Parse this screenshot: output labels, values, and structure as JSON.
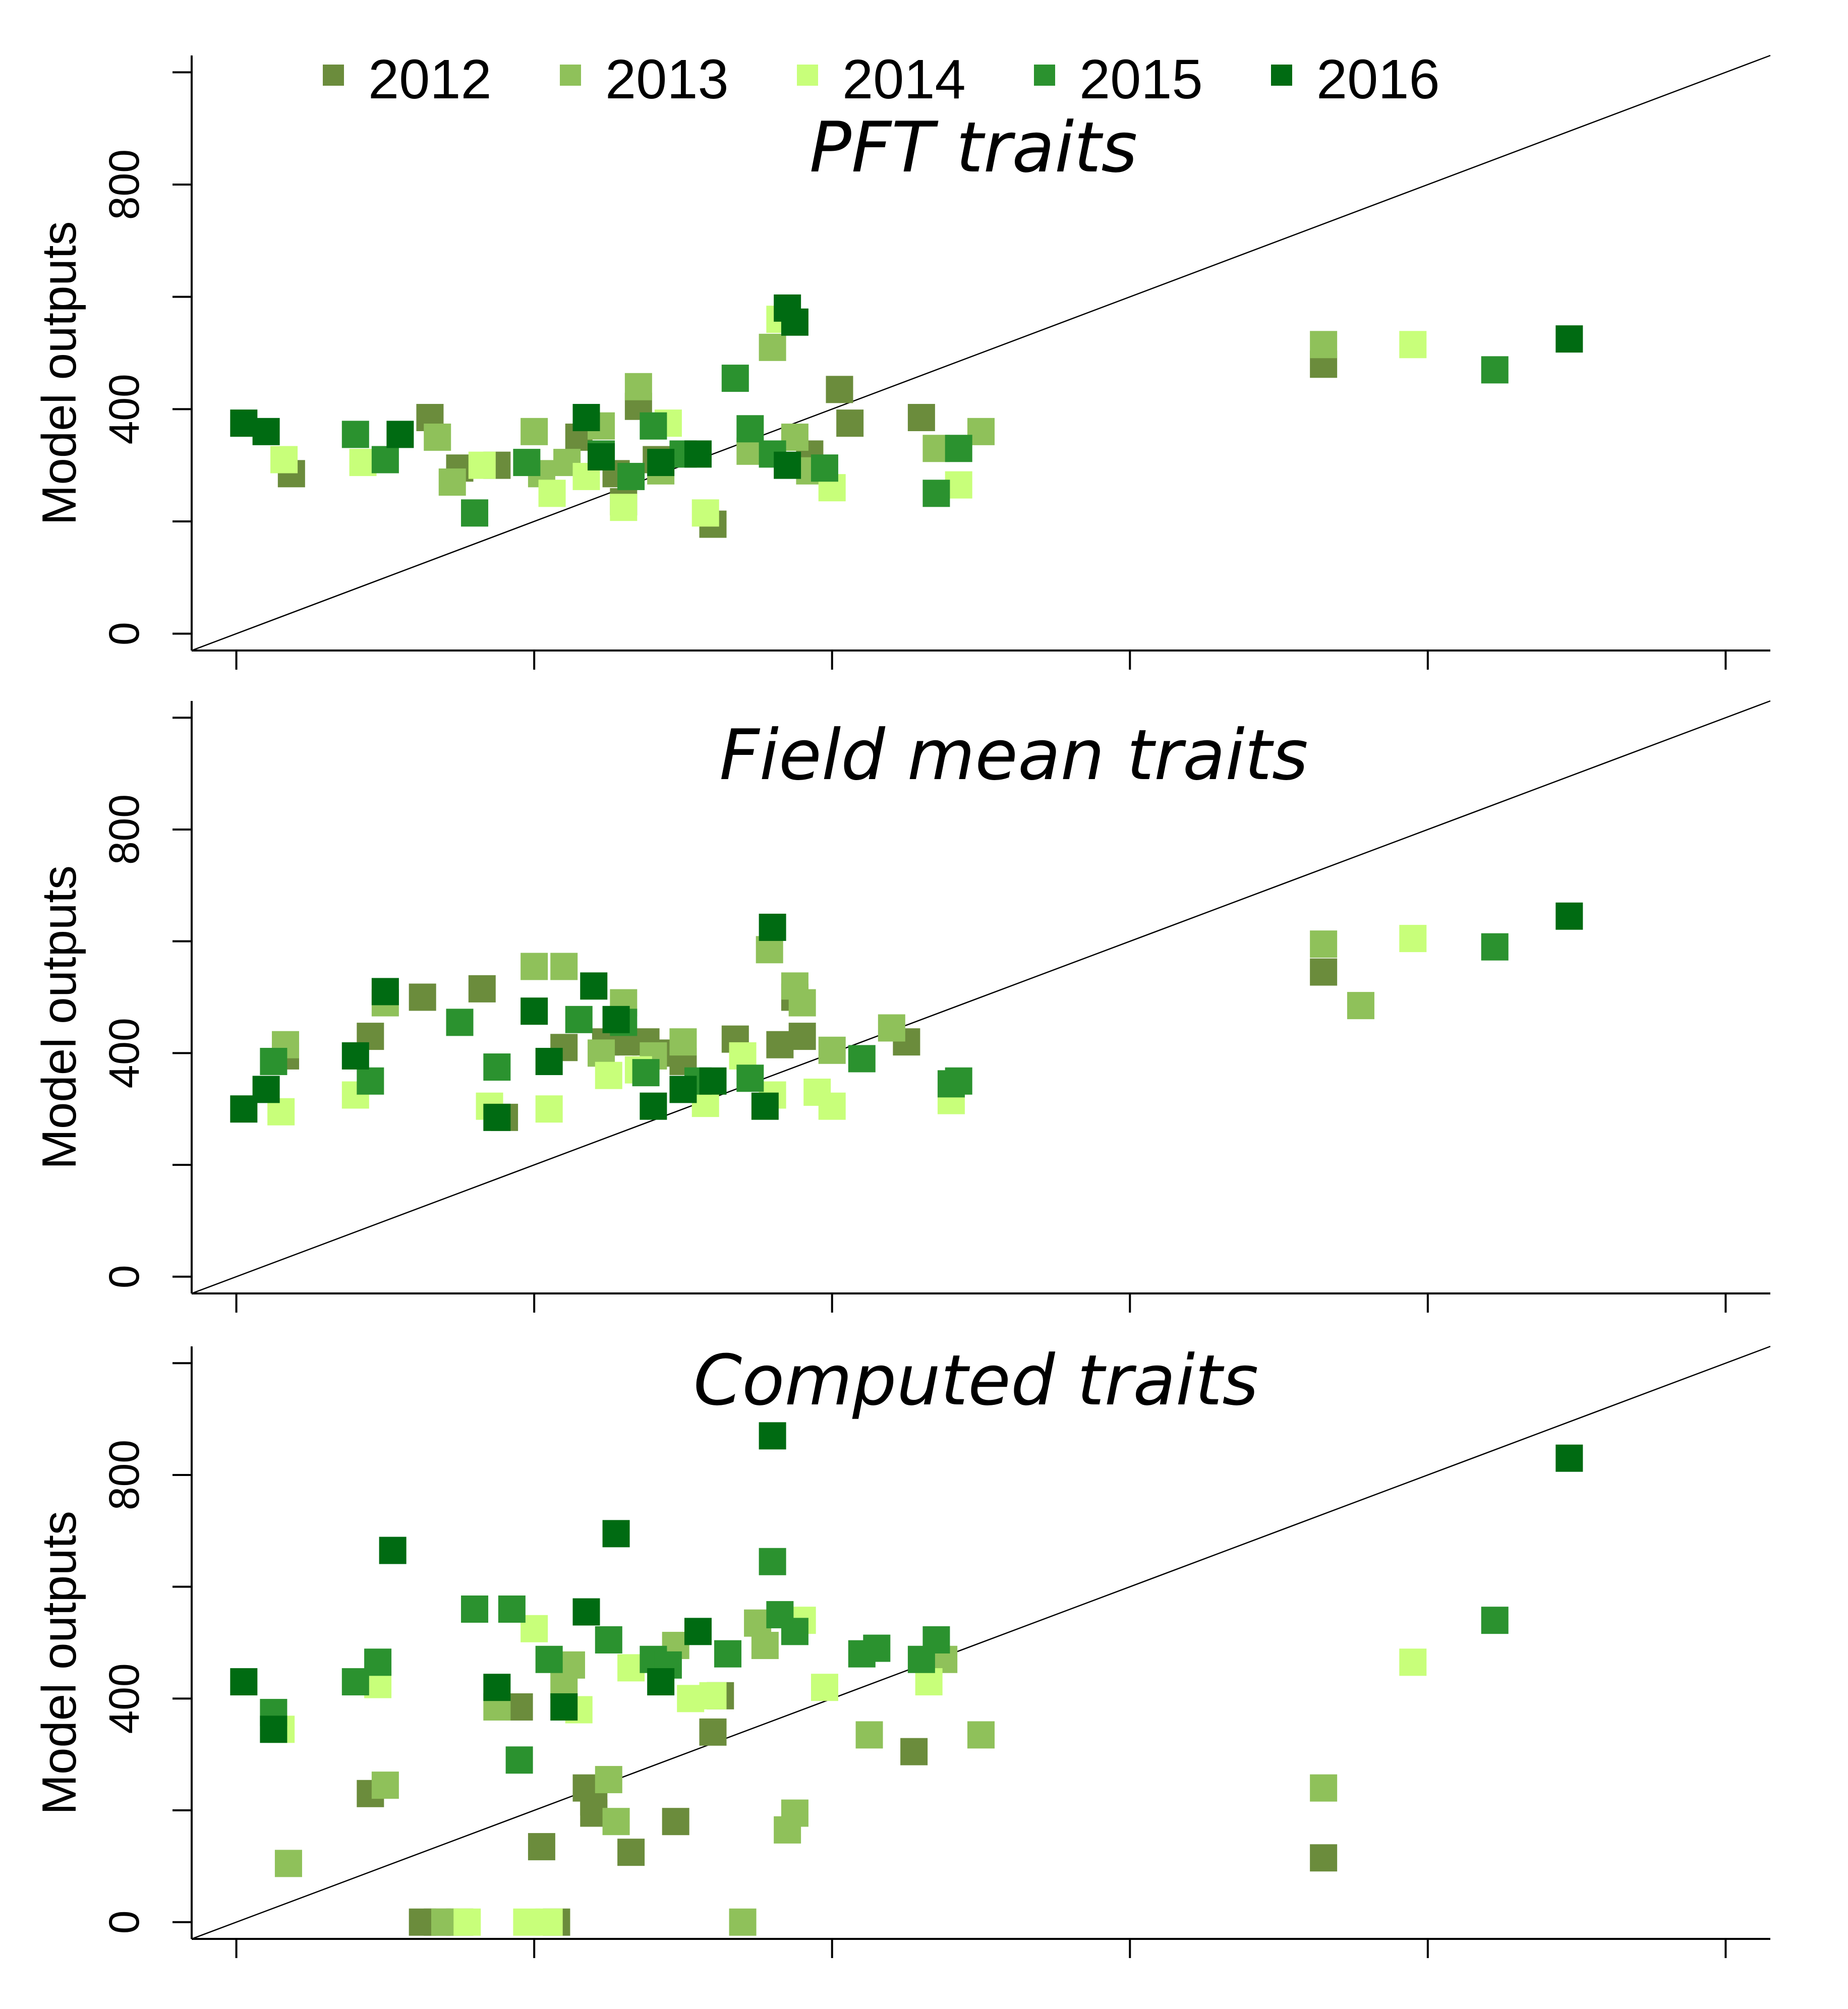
{
  "colors": {
    "2012": "#6b8c3c",
    "2013": "#8fc15a",
    "2014": "#c8ff7a",
    "2015": "#2b922f",
    "2016": "#006b12"
  },
  "chart_data": [
    {
      "type": "scatter",
      "title": "PFT traits",
      "ylabel": "Model outputs",
      "ylim": [
        -30,
        1030
      ],
      "yticks": [
        0,
        400,
        800
      ],
      "xlim": [
        -30,
        1030
      ],
      "reference_line": "1:1",
      "legend": {
        "placement": "top",
        "entries": [
          "2012",
          "2013",
          "2014",
          "2015",
          "2016"
        ]
      },
      "series": [
        {
          "name": "2012",
          "points": [
            [
              37,
              285
            ],
            [
              130,
              385
            ],
            [
              150,
              295
            ],
            [
              175,
              300
            ],
            [
              230,
              350
            ],
            [
              255,
              285
            ],
            [
              260,
              235
            ],
            [
              270,
              405
            ],
            [
              282,
              310
            ],
            [
              320,
              195
            ],
            [
              385,
              320
            ],
            [
              405,
              435
            ],
            [
              412,
              375
            ],
            [
              460,
              385
            ],
            [
              730,
              480
            ]
          ]
        },
        {
          "name": "2013",
          "points": [
            [
              135,
              350
            ],
            [
              145,
              270
            ],
            [
              200,
              360
            ],
            [
              205,
              285
            ],
            [
              222,
              305
            ],
            [
              245,
              370
            ],
            [
              270,
              440
            ],
            [
              285,
              290
            ],
            [
              345,
              325
            ],
            [
              360,
              510
            ],
            [
              375,
              350
            ],
            [
              385,
              290
            ],
            [
              470,
              330
            ],
            [
              500,
              360
            ],
            [
              730,
              515
            ]
          ]
        },
        {
          "name": "2014",
          "points": [
            [
              32,
              310
            ],
            [
              85,
              305
            ],
            [
              165,
              300
            ],
            [
              212,
              250
            ],
            [
              235,
              280
            ],
            [
              260,
              225
            ],
            [
              290,
              375
            ],
            [
              315,
              215
            ],
            [
              365,
              560
            ],
            [
              400,
              260
            ],
            [
              485,
              265
            ],
            [
              790,
              515
            ]
          ]
        },
        {
          "name": "2015",
          "points": [
            [
              80,
              355
            ],
            [
              100,
              310
            ],
            [
              160,
              215
            ],
            [
              195,
              305
            ],
            [
              245,
              320
            ],
            [
              265,
              280
            ],
            [
              280,
              370
            ],
            [
              300,
              320
            ],
            [
              335,
              455
            ],
            [
              345,
              365
            ],
            [
              360,
              320
            ],
            [
              395,
              295
            ],
            [
              470,
              250
            ],
            [
              485,
              330
            ],
            [
              845,
              470
            ]
          ]
        },
        {
          "name": "2016",
          "points": [
            [
              5,
              375
            ],
            [
              20,
              360
            ],
            [
              110,
              355
            ],
            [
              235,
              385
            ],
            [
              245,
              315
            ],
            [
              285,
              305
            ],
            [
              310,
              320
            ],
            [
              370,
              580
            ],
            [
              375,
              555
            ],
            [
              370,
              300
            ],
            [
              895,
              525
            ]
          ]
        }
      ]
    },
    {
      "type": "scatter",
      "title": "Field mean traits",
      "ylabel": "Model outputs",
      "ylim": [
        -30,
        1030
      ],
      "yticks": [
        0,
        400,
        800
      ],
      "xlim": [
        -30,
        1030
      ],
      "reference_line": "1:1",
      "series": [
        {
          "name": "2012",
          "points": [
            [
              33,
              395
            ],
            [
              90,
              430
            ],
            [
              125,
              500
            ],
            [
              165,
              515
            ],
            [
              180,
              285
            ],
            [
              220,
              410
            ],
            [
              248,
              420
            ],
            [
              260,
              420
            ],
            [
              275,
              420
            ],
            [
              290,
              400
            ],
            [
              300,
              385
            ],
            [
              335,
              425
            ],
            [
              365,
              415
            ],
            [
              375,
              500
            ],
            [
              380,
              430
            ],
            [
              450,
              420
            ],
            [
              730,
              545
            ]
          ]
        },
        {
          "name": "2013",
          "points": [
            [
              33,
              415
            ],
            [
              100,
              490
            ],
            [
              200,
              555
            ],
            [
              220,
              555
            ],
            [
              245,
              400
            ],
            [
              260,
              490
            ],
            [
              280,
              395
            ],
            [
              300,
              420
            ],
            [
              358,
              585
            ],
            [
              375,
              520
            ],
            [
              380,
              490
            ],
            [
              400,
              405
            ],
            [
              440,
              445
            ],
            [
              755,
              485
            ],
            [
              730,
              595
            ]
          ]
        },
        {
          "name": "2014",
          "points": [
            [
              30,
              295
            ],
            [
              80,
              325
            ],
            [
              170,
              305
            ],
            [
              210,
              300
            ],
            [
              250,
              360
            ],
            [
              270,
              370
            ],
            [
              315,
              310
            ],
            [
              340,
              395
            ],
            [
              360,
              325
            ],
            [
              390,
              330
            ],
            [
              400,
              305
            ],
            [
              480,
              315
            ],
            [
              790,
              605
            ]
          ]
        },
        {
          "name": "2015",
          "points": [
            [
              25,
              385
            ],
            [
              90,
              350
            ],
            [
              150,
              455
            ],
            [
              175,
              375
            ],
            [
              230,
              460
            ],
            [
              260,
              455
            ],
            [
              275,
              365
            ],
            [
              310,
              350
            ],
            [
              345,
              355
            ],
            [
              420,
              390
            ],
            [
              480,
              345
            ],
            [
              485,
              350
            ],
            [
              845,
              590
            ]
          ]
        },
        {
          "name": "2016",
          "points": [
            [
              5,
              300
            ],
            [
              20,
              335
            ],
            [
              80,
              395
            ],
            [
              100,
              510
            ],
            [
              175,
              285
            ],
            [
              200,
              475
            ],
            [
              210,
              385
            ],
            [
              240,
              520
            ],
            [
              255,
              460
            ],
            [
              280,
              305
            ],
            [
              300,
              335
            ],
            [
              320,
              350
            ],
            [
              355,
              305
            ],
            [
              360,
              625
            ],
            [
              895,
              645
            ]
          ]
        }
      ]
    },
    {
      "type": "scatter",
      "title": "Computed traits",
      "ylabel": "Model outputs",
      "ylim": [
        -30,
        1030
      ],
      "yticks": [
        0,
        400,
        800
      ],
      "xlim": [
        -30,
        1030
      ],
      "reference_line": "1:1",
      "series": [
        {
          "name": "2012",
          "points": [
            [
              90,
              230
            ],
            [
              125,
              0
            ],
            [
              135,
              0
            ],
            [
              150,
              0
            ],
            [
              190,
              385
            ],
            [
              205,
              135
            ],
            [
              215,
              0
            ],
            [
              235,
              240
            ],
            [
              240,
              215
            ],
            [
              240,
              195
            ],
            [
              265,
              125
            ],
            [
              295,
              180
            ],
            [
              320,
              340
            ],
            [
              325,
              405
            ],
            [
              455,
              305
            ],
            [
              730,
              115
            ]
          ]
        },
        {
          "name": "2013",
          "points": [
            [
              35,
              105
            ],
            [
              100,
              245
            ],
            [
              140,
              0
            ],
            [
              175,
              385
            ],
            [
              225,
              460
            ],
            [
              220,
              425
            ],
            [
              250,
              255
            ],
            [
              255,
              180
            ],
            [
              295,
              495
            ],
            [
              340,
              0
            ],
            [
              350,
              535
            ],
            [
              355,
              495
            ],
            [
              375,
              195
            ],
            [
              370,
              165
            ],
            [
              425,
              335
            ],
            [
              475,
              470
            ],
            [
              500,
              335
            ],
            [
              730,
              240
            ]
          ]
        },
        {
          "name": "2014",
          "points": [
            [
              30,
              345
            ],
            [
              95,
              425
            ],
            [
              155,
              0
            ],
            [
              195,
              0
            ],
            [
              200,
              525
            ],
            [
              210,
              0
            ],
            [
              230,
              380
            ],
            [
              265,
              455
            ],
            [
              305,
              400
            ],
            [
              320,
              405
            ],
            [
              380,
              540
            ],
            [
              395,
              420
            ],
            [
              465,
              430
            ],
            [
              790,
              465
            ]
          ]
        },
        {
          "name": "2015",
          "points": [
            [
              25,
              375
            ],
            [
              80,
              430
            ],
            [
              95,
              465
            ],
            [
              160,
              560
            ],
            [
              185,
              560
            ],
            [
              190,
              290
            ],
            [
              210,
              470
            ],
            [
              250,
              505
            ],
            [
              280,
              470
            ],
            [
              290,
              460
            ],
            [
              330,
              480
            ],
            [
              360,
              645
            ],
            [
              365,
              550
            ],
            [
              375,
              520
            ],
            [
              420,
              480
            ],
            [
              430,
              490
            ],
            [
              470,
              505
            ],
            [
              460,
              470
            ],
            [
              845,
              540
            ]
          ]
        },
        {
          "name": "2016",
          "points": [
            [
              5,
              430
            ],
            [
              25,
              345
            ],
            [
              105,
              665
            ],
            [
              175,
              420
            ],
            [
              220,
              385
            ],
            [
              235,
              555
            ],
            [
              255,
              695
            ],
            [
              285,
              430
            ],
            [
              310,
              520
            ],
            [
              360,
              870
            ],
            [
              895,
              830
            ]
          ]
        }
      ]
    }
  ]
}
